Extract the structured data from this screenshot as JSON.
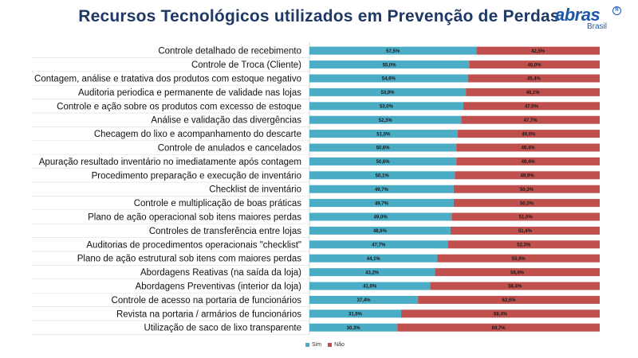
{
  "header": {
    "title": "Recursos Tecnológicos utilizados em Prevenção de Perdas",
    "logo_text": "abras",
    "logo_sub": "Brasil",
    "logo_mark": "R"
  },
  "colors": {
    "sim": "#4bacc6",
    "nao": "#c0504d"
  },
  "chart_data": {
    "type": "bar",
    "orientation": "horizontal",
    "stacked": true,
    "percent_stacked": true,
    "categories": [
      "Controle detalhado de recebimento",
      "Controle de Troca (Cliente)",
      "Contagem, análise e tratativa dos produtos com estoque negativo",
      "Auditoria periodica e permanente de validade nas lojas",
      "Controle e ação sobre os produtos com excesso de estoque",
      "Análise e validação das divergências",
      "Checagem do lixo e acompanhamento do descarte",
      "Controle de anulados e cancelados",
      "Apuração resultado inventário no imediatamente após contagem",
      "Procedimento preparação e execução de inventário",
      "Checklist de inventário",
      "Controle e multiplicação de boas práticas",
      "Plano de ação operacional sob itens maiores perdas",
      "Controles de transferência entre lojas",
      "Auditorias de procedimentos operacionais \"checklist\"",
      "Plano de ação estrutural sob itens com maiores perdas",
      "Abordagens Reativas (na saída da loja)",
      "Abordagens Preventivas (interior da loja)",
      "Controle de acesso na portaria de funcionários",
      "Revista na portaria / armários de funcionários",
      "Utilização de saco de lixo transparente"
    ],
    "series": [
      {
        "name": "Sim",
        "values": [
          57.5,
          55.0,
          54.6,
          53.9,
          53.0,
          52.3,
          51.0,
          50.6,
          50.6,
          50.1,
          49.7,
          49.7,
          49.0,
          48.6,
          47.7,
          44.1,
          43.2,
          41.6,
          37.4,
          31.6,
          30.3
        ],
        "labels": [
          "57,5%",
          "55,0%",
          "54,6%",
          "53,9%",
          "53,0%",
          "52,3%",
          "51,0%",
          "50,6%",
          "50,6%",
          "50,1%",
          "49,7%",
          "49,7%",
          "49,0%",
          "48,6%",
          "47,7%",
          "44,1%",
          "43,2%",
          "41,6%",
          "37,4%",
          "31,6%",
          "30,3%"
        ]
      },
      {
        "name": "Não",
        "values": [
          42.5,
          45.0,
          45.4,
          46.1,
          47.0,
          47.7,
          49.0,
          49.4,
          49.4,
          49.9,
          50.3,
          50.3,
          51.0,
          51.4,
          52.3,
          55.9,
          56.8,
          58.4,
          62.6,
          68.4,
          69.7
        ],
        "labels": [
          "42,5%",
          "45,0%",
          "45,4%",
          "46,1%",
          "47,0%",
          "47,7%",
          "49,0%",
          "49,4%",
          "49,4%",
          "49,9%",
          "50,3%",
          "50,3%",
          "51,0%",
          "51,4%",
          "52,3%",
          "55,9%",
          "56,8%",
          "58,4%",
          "62,6%",
          "68,4%",
          "69,7%"
        ]
      }
    ],
    "xlim": [
      0,
      100
    ],
    "legend_position": "bottom",
    "grid": false
  }
}
